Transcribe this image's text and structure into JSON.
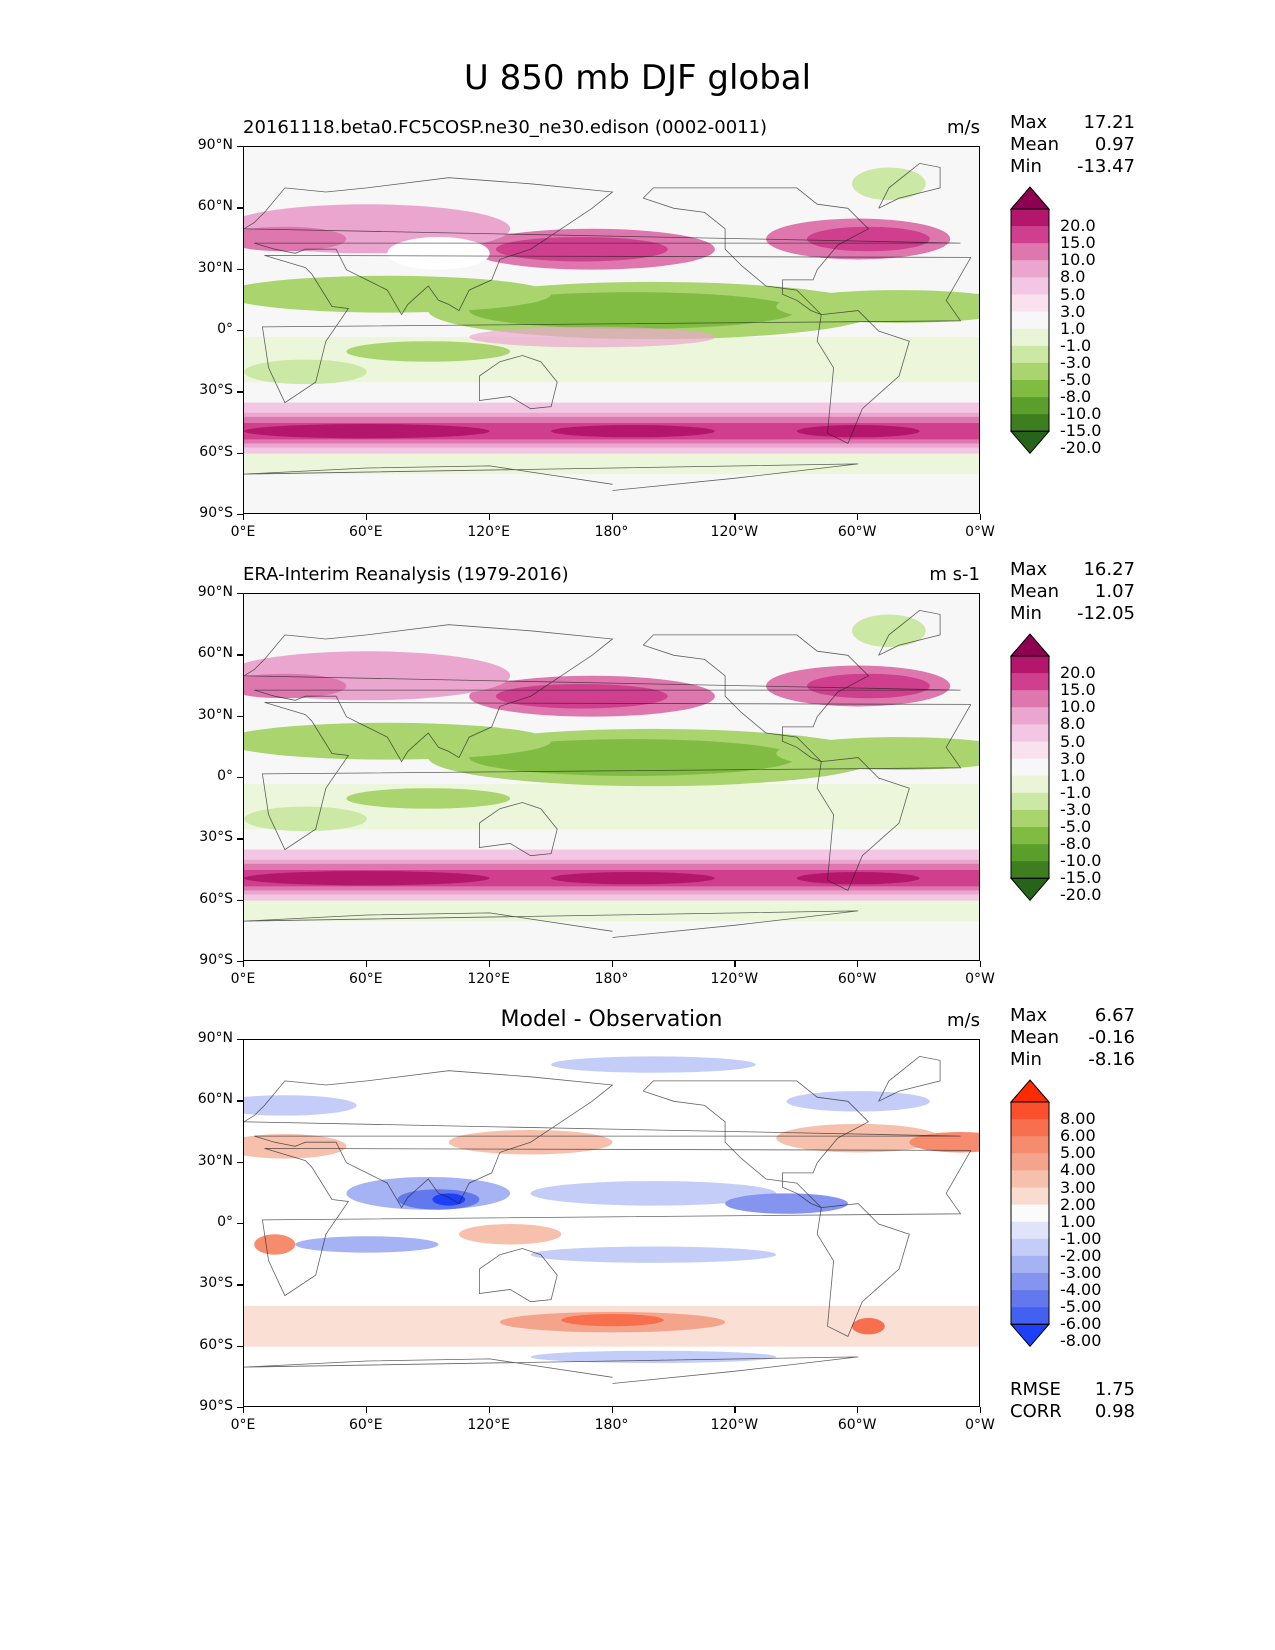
{
  "title": "U 850 mb DJF global",
  "x_ticks": [
    "0°E",
    "60°E",
    "120°E",
    "180°",
    "120°W",
    "60°W",
    "0°W"
  ],
  "y_ticks": [
    "90°N",
    "60°N",
    "30°N",
    "0°",
    "30°S",
    "60°S",
    "90°S"
  ],
  "stat_labels": {
    "max": "Max",
    "mean": "Mean",
    "min": "Min",
    "rmse": "RMSE",
    "corr": "CORR"
  },
  "panels": [
    {
      "title": "20161118.beta0.FC5COSP.ne30_ne30.edison (0002-0011)",
      "units": "m/s",
      "stats": {
        "max": "17.21",
        "mean": "0.97",
        "min": "-13.47"
      },
      "colorbar": {
        "levels": [
          "20.0",
          "15.0",
          "10.0",
          "8.0",
          "5.0",
          "3.0",
          "1.0",
          "-1.0",
          "-3.0",
          "-5.0",
          "-8.0",
          "-10.0",
          "-15.0",
          "-20.0"
        ],
        "colors": [
          "#8e0152",
          "#b4166c",
          "#cf3f8e",
          "#de77ae",
          "#eba6cf",
          "#f3c7e3",
          "#f9e2ee",
          "#f7f7f7",
          "#e9f5d6",
          "#cbe8a4",
          "#a9d46e",
          "#7fbc41",
          "#5a9f2c",
          "#3d7f1f",
          "#276419"
        ]
      }
    },
    {
      "title": "ERA-Interim Reanalysis (1979-2016)",
      "units": "m s-1",
      "stats": {
        "max": "16.27",
        "mean": "1.07",
        "min": "-12.05"
      },
      "colorbar": {
        "levels": [
          "20.0",
          "15.0",
          "10.0",
          "8.0",
          "5.0",
          "3.0",
          "1.0",
          "-1.0",
          "-3.0",
          "-5.0",
          "-8.0",
          "-10.0",
          "-15.0",
          "-20.0"
        ],
        "colors": [
          "#8e0152",
          "#b4166c",
          "#cf3f8e",
          "#de77ae",
          "#eba6cf",
          "#f3c7e3",
          "#f9e2ee",
          "#f7f7f7",
          "#e9f5d6",
          "#cbe8a4",
          "#a9d46e",
          "#7fbc41",
          "#5a9f2c",
          "#3d7f1f",
          "#276419"
        ]
      }
    },
    {
      "title": "Model - Observation",
      "units": "m/s",
      "stats": {
        "max": "6.67",
        "mean": "-0.16",
        "min": "-8.16"
      },
      "rmse": "1.75",
      "corr": "0.98",
      "colorbar": {
        "levels": [
          "8.00",
          "6.00",
          "5.00",
          "4.00",
          "3.00",
          "2.00",
          "1.00",
          "-1.00",
          "-2.00",
          "-3.00",
          "-4.00",
          "-5.00",
          "-6.00",
          "-8.00"
        ],
        "colors": [
          "#ff2a00",
          "#fb4f2e",
          "#f86f4d",
          "#f68b6d",
          "#f5a48c",
          "#f6c0ad",
          "#fadbd0",
          "#fbfbfb",
          "#dfe4fb",
          "#c4cdf7",
          "#a5b2f3",
          "#8494ef",
          "#6478ee",
          "#4260f2",
          "#1c3ffa"
        ]
      }
    }
  ],
  "chart_data": [
    {
      "type": "heatmap",
      "title": "20161118.beta0.FC5COSP.ne30_ne30.edison (0002-0011)",
      "units": "m/s",
      "x_range": [
        0,
        360
      ],
      "y_range": [
        -90,
        90
      ],
      "x_ticks": [
        "0°E",
        "60°E",
        "120°E",
        "180°",
        "120°W",
        "60°W",
        "0°W"
      ],
      "y_ticks": [
        "90°N",
        "60°N",
        "30°N",
        "0°",
        "30°S",
        "60°S",
        "90°S"
      ],
      "max": 17.21,
      "mean": 0.97,
      "min": -13.47,
      "zonal_features": [
        {
          "lat_band": [
            40,
            60
          ],
          "sign": "positive",
          "peak_ms": 15
        },
        {
          "lat_band": [
            -10,
            20
          ],
          "sign": "negative",
          "peak_ms": -10
        },
        {
          "lat_band": [
            -60,
            -40
          ],
          "sign": "positive",
          "peak_ms": 15
        }
      ]
    },
    {
      "type": "heatmap",
      "title": "ERA-Interim Reanalysis (1979-2016)",
      "units": "m s-1",
      "x_range": [
        0,
        360
      ],
      "y_range": [
        -90,
        90
      ],
      "max": 16.27,
      "mean": 1.07,
      "min": -12.05
    },
    {
      "type": "heatmap",
      "title": "Model - Observation",
      "units": "m/s",
      "x_range": [
        0,
        360
      ],
      "y_range": [
        -90,
        90
      ],
      "max": 6.67,
      "mean": -0.16,
      "min": -8.16,
      "rmse": 1.75,
      "corr": 0.98
    }
  ]
}
